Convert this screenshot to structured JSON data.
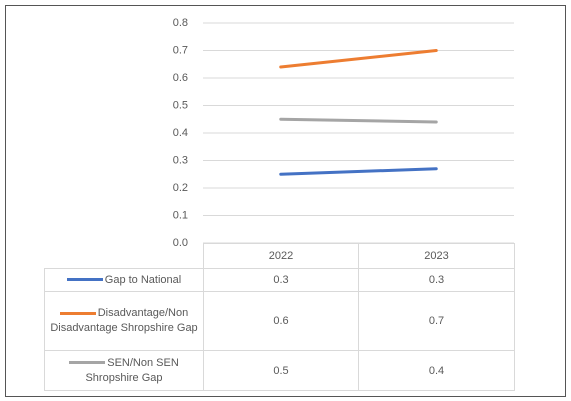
{
  "chart_data": {
    "type": "line",
    "categories": [
      "2022",
      "2023"
    ],
    "series": [
      {
        "name": "Gap to National",
        "color": "#4472c4",
        "values": [
          0.25,
          0.27
        ],
        "value_labels": [
          "0.3",
          "0.3"
        ]
      },
      {
        "name": "Disadvantage/Non Disadvantage Shropshire Gap",
        "color": "#ed7d31",
        "values": [
          0.64,
          0.7
        ],
        "value_labels": [
          "0.6",
          "0.7"
        ]
      },
      {
        "name": "SEN/Non SEN Shropshire Gap",
        "color": "#a5a5a5",
        "values": [
          0.45,
          0.44
        ],
        "value_labels": [
          "0.5",
          "0.4"
        ]
      }
    ],
    "ylim": [
      0,
      0.8
    ],
    "yticks": [
      {
        "value": 0,
        "label": "0.0"
      },
      0.1,
      0.2,
      0.3,
      0.4,
      0.5,
      0.6,
      0.7,
      0.8
    ],
    "grid": true
  }
}
